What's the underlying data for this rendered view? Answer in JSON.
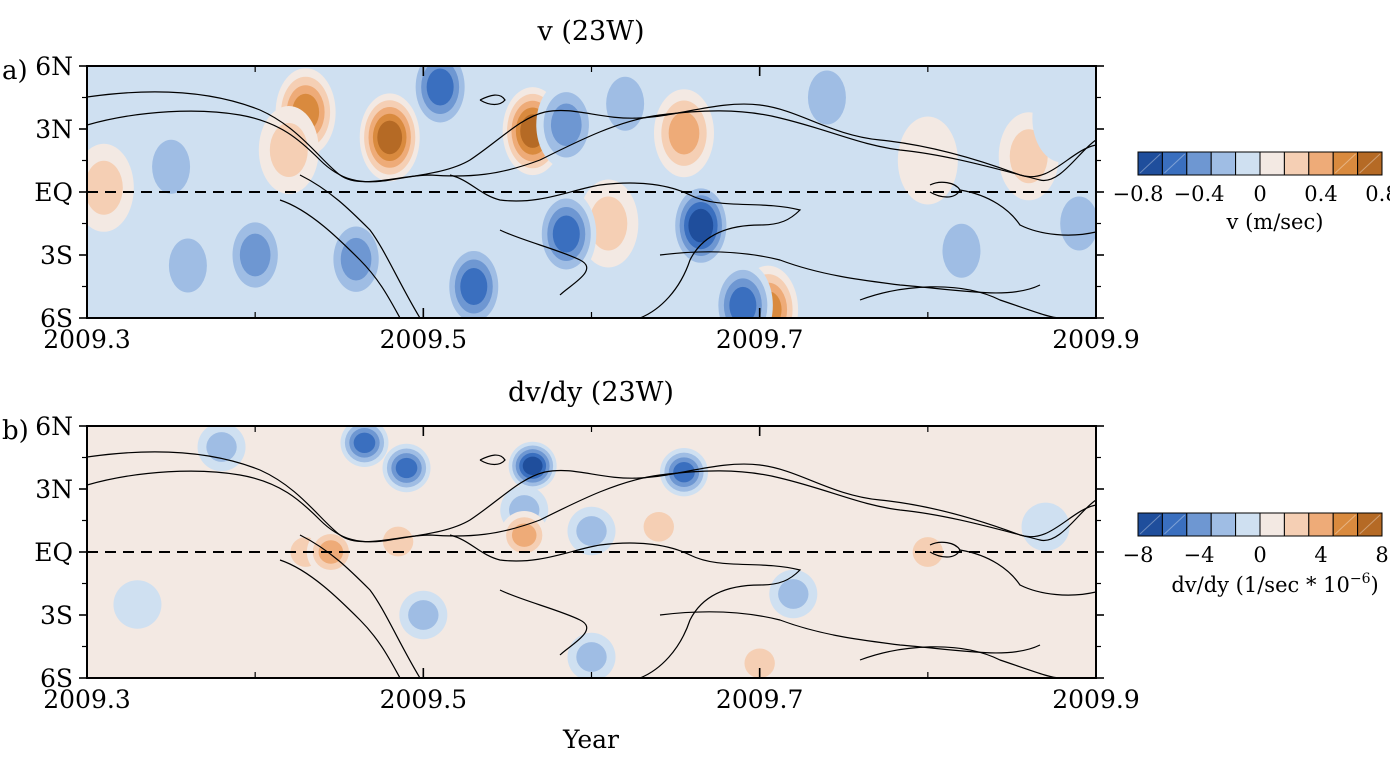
{
  "figure": {
    "xlabel": "Year",
    "x_tick_labels": [
      "2009.3",
      "2009.5",
      "2009.7",
      "2009.9"
    ],
    "y_tick_labels": [
      "6N",
      "3N",
      "EQ",
      "3S",
      "6S"
    ]
  },
  "colorscale": {
    "negative": [
      "#1f4e9c",
      "#3a6fbf",
      "#6e97d2",
      "#9fbde4",
      "#cfe0f1"
    ],
    "positive": [
      "#f3e9e3",
      "#f5cfb4",
      "#eeab78",
      "#d98a3e",
      "#b56a25"
    ]
  },
  "chart_data": [
    {
      "type": "heatmap",
      "panel_label": "a)",
      "title": "v (23W)",
      "xlim": [
        2009.3,
        2009.9
      ],
      "ylim": [
        -6,
        6
      ],
      "y_ticks": [
        6,
        3,
        0,
        -3,
        -6
      ],
      "equator_line": "dashed",
      "colorbar": {
        "label": "v (m/sec)",
        "tick_labels": [
          "−0.8",
          "−0.4",
          "0",
          "0.4",
          "0.8"
        ],
        "levels": [
          -0.8,
          -0.6,
          -0.4,
          -0.2,
          -0.05,
          0.05,
          0.2,
          0.4,
          0.6,
          0.8
        ]
      },
      "features": [
        {
          "x": 2009.43,
          "y": 3.8,
          "value": 0.6
        },
        {
          "x": 2009.48,
          "y": 2.6,
          "value": 0.7
        },
        {
          "x": 2009.565,
          "y": 2.9,
          "value": 0.8
        },
        {
          "x": 2009.655,
          "y": 2.8,
          "value": 0.4
        },
        {
          "x": 2009.705,
          "y": -5.6,
          "value": 0.5
        },
        {
          "x": 2009.61,
          "y": -1.5,
          "value": 0.2
        },
        {
          "x": 2009.42,
          "y": 2.0,
          "value": 0.3
        },
        {
          "x": 2009.31,
          "y": 0.2,
          "value": 0.2
        },
        {
          "x": 2009.8,
          "y": 1.5,
          "value": 0.15
        },
        {
          "x": 2009.86,
          "y": 1.7,
          "value": 0.2
        },
        {
          "x": 2009.51,
          "y": 5.0,
          "value": -0.6
        },
        {
          "x": 2009.53,
          "y": -4.5,
          "value": -0.5
        },
        {
          "x": 2009.585,
          "y": 3.2,
          "value": -0.4
        },
        {
          "x": 2009.585,
          "y": -2.0,
          "value": -0.5
        },
        {
          "x": 2009.665,
          "y": -1.6,
          "value": -0.7
        },
        {
          "x": 2009.69,
          "y": -5.4,
          "value": -0.6
        },
        {
          "x": 2009.4,
          "y": -3.0,
          "value": -0.4
        },
        {
          "x": 2009.36,
          "y": -3.5,
          "value": -0.3
        },
        {
          "x": 2009.46,
          "y": -3.2,
          "value": -0.45
        },
        {
          "x": 2009.62,
          "y": 4.2,
          "value": -0.3
        },
        {
          "x": 2009.74,
          "y": 4.5,
          "value": -0.3
        },
        {
          "x": 2009.82,
          "y": -2.8,
          "value": -0.3
        },
        {
          "x": 2009.89,
          "y": -1.5,
          "value": -0.2
        },
        {
          "x": 2009.35,
          "y": 1.2,
          "value": -0.2
        },
        {
          "x": 2009.88,
          "y": 3.5,
          "value": -0.1
        }
      ]
    },
    {
      "type": "heatmap",
      "panel_label": "b)",
      "title": "dv/dy (23W)",
      "xlim": [
        2009.3,
        2009.9
      ],
      "ylim": [
        -6,
        6
      ],
      "y_ticks": [
        6,
        3,
        0,
        -3,
        -6
      ],
      "equator_line": "dashed",
      "colorbar": {
        "label": "dv/dy (1/sec * 10",
        "label_exponent": "−6",
        "label_suffix": ")",
        "tick_labels": [
          "−8",
          "−4",
          "0",
          "4",
          "8"
        ],
        "levels": [
          -8,
          -6,
          -4,
          -2,
          -0.5,
          0.5,
          2,
          4,
          6,
          8
        ]
      },
      "features": [
        {
          "x": 2009.565,
          "y": 4.1,
          "value": -8
        },
        {
          "x": 2009.465,
          "y": 5.2,
          "value": -5
        },
        {
          "x": 2009.49,
          "y": 4.0,
          "value": -5
        },
        {
          "x": 2009.655,
          "y": 3.8,
          "value": -5
        },
        {
          "x": 2009.38,
          "y": 5.0,
          "value": -3
        },
        {
          "x": 2009.56,
          "y": 2.0,
          "value": -3
        },
        {
          "x": 2009.6,
          "y": 1.0,
          "value": -2
        },
        {
          "x": 2009.43,
          "y": 0.0,
          "value": 3
        },
        {
          "x": 2009.445,
          "y": 0.0,
          "value": 4
        },
        {
          "x": 2009.485,
          "y": 0.5,
          "value": 3
        },
        {
          "x": 2009.56,
          "y": 0.8,
          "value": 4
        },
        {
          "x": 2009.64,
          "y": 1.2,
          "value": 2
        },
        {
          "x": 2009.72,
          "y": -2.0,
          "value": -2
        },
        {
          "x": 2009.5,
          "y": -3.0,
          "value": -2
        },
        {
          "x": 2009.33,
          "y": -2.5,
          "value": -1.5
        },
        {
          "x": 2009.6,
          "y": -5.0,
          "value": -2
        },
        {
          "x": 2009.8,
          "y": 0.0,
          "value": 2
        },
        {
          "x": 2009.88,
          "y": 0.0,
          "value": 1.5
        },
        {
          "x": 2009.87,
          "y": 1.2,
          "value": -1.5
        },
        {
          "x": 2009.7,
          "y": -5.3,
          "value": 2
        }
      ]
    }
  ]
}
